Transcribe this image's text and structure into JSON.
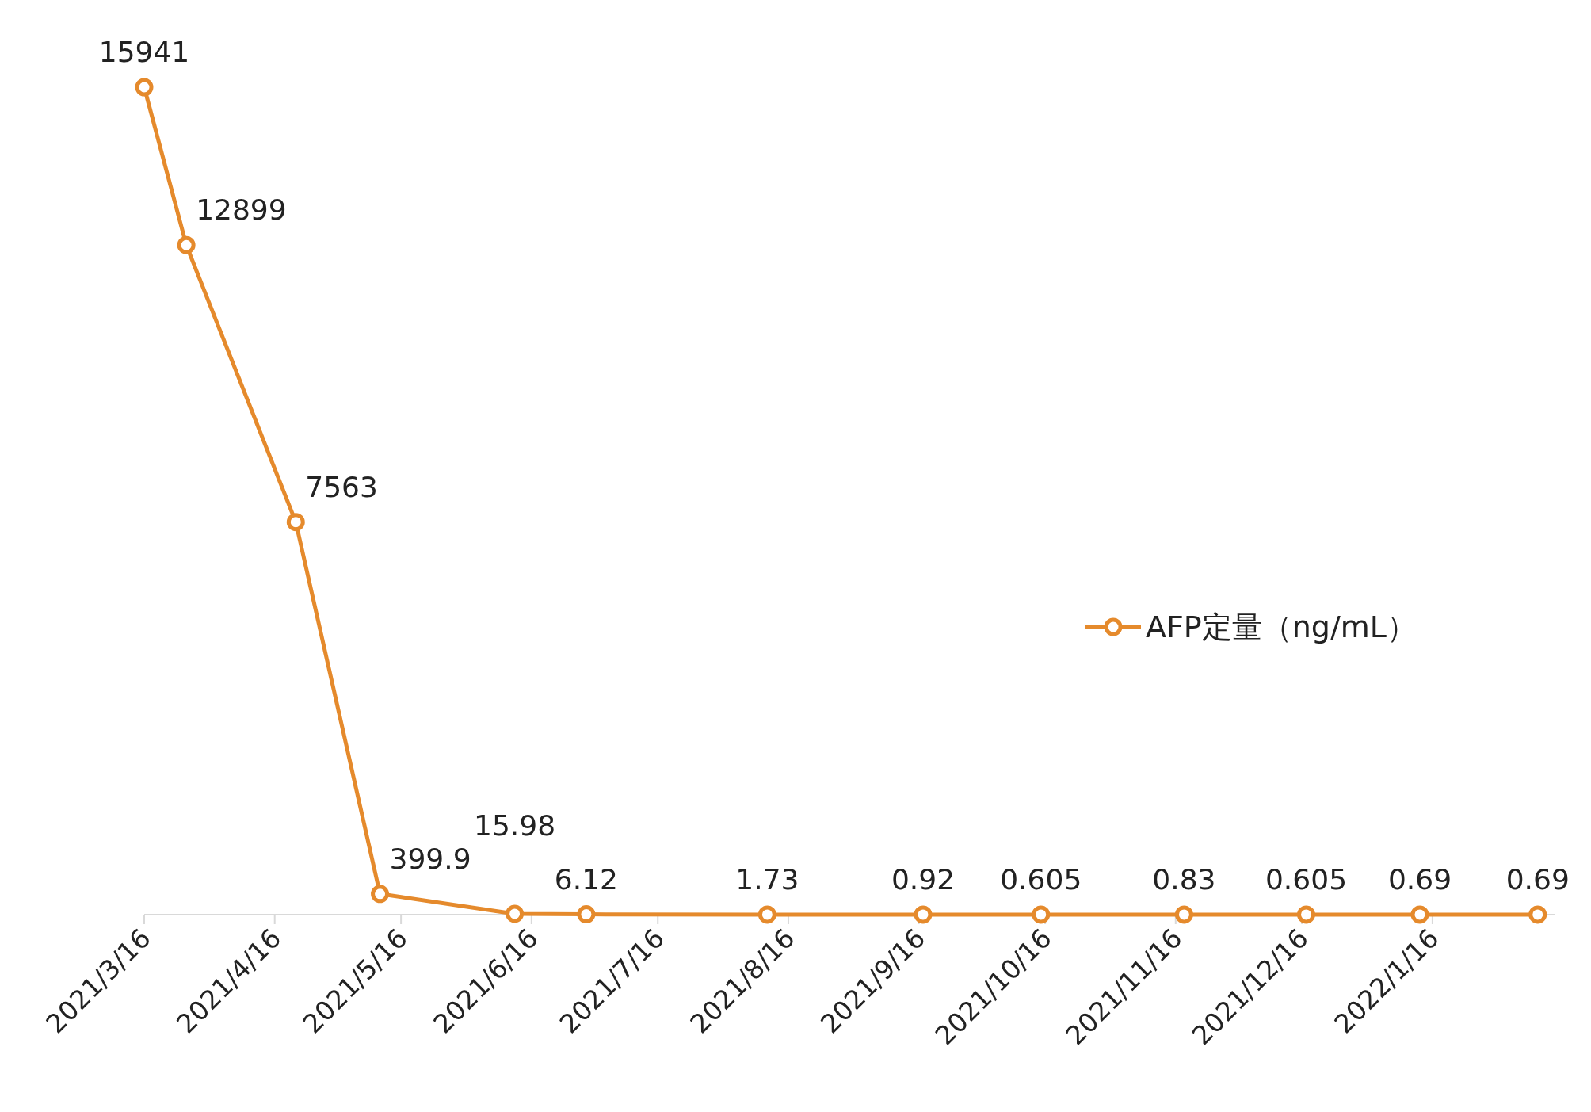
{
  "chart_data": {
    "type": "line",
    "x": [
      "2021-03-16",
      "2021-03-26",
      "2021-04-21",
      "2021-05-11",
      "2021-06-12",
      "2021-06-29",
      "2021-08-11",
      "2021-09-17",
      "2021-10-15",
      "2021-11-18",
      "2021-12-17",
      "2022-01-13",
      "2022-02-10"
    ],
    "series": [
      {
        "name": "AFP定量（ng/mL）",
        "color": "#e58a2c",
        "values": [
          15941,
          12899,
          7563,
          399.9,
          15.98,
          6.12,
          1.73,
          0.92,
          0.605,
          0.83,
          0.605,
          0.69,
          0.69
        ]
      }
    ],
    "xlim": [
      "2021-03-16",
      "2022-02-14"
    ],
    "xticks": [
      {
        "value": "2021-03-16",
        "label": "2021/3/16"
      },
      {
        "value": "2021-04-16",
        "label": "2021/4/16"
      },
      {
        "value": "2021-05-16",
        "label": "2021/5/16"
      },
      {
        "value": "2021-06-16",
        "label": "2021/6/16"
      },
      {
        "value": "2021-07-16",
        "label": "2021/7/16"
      },
      {
        "value": "2021-08-16",
        "label": "2021/8/16"
      },
      {
        "value": "2021-09-16",
        "label": "2021/9/16"
      },
      {
        "value": "2021-10-16",
        "label": "2021/10/16"
      },
      {
        "value": "2021-11-16",
        "label": "2021/11/16"
      },
      {
        "value": "2021-12-16",
        "label": "2021/12/16"
      },
      {
        "value": "2022-01-16",
        "label": "2022/1/16"
      }
    ],
    "data_labels": true,
    "marker": "circle",
    "line_style": "solid",
    "legend": "right",
    "tick_labels": "x"
  }
}
